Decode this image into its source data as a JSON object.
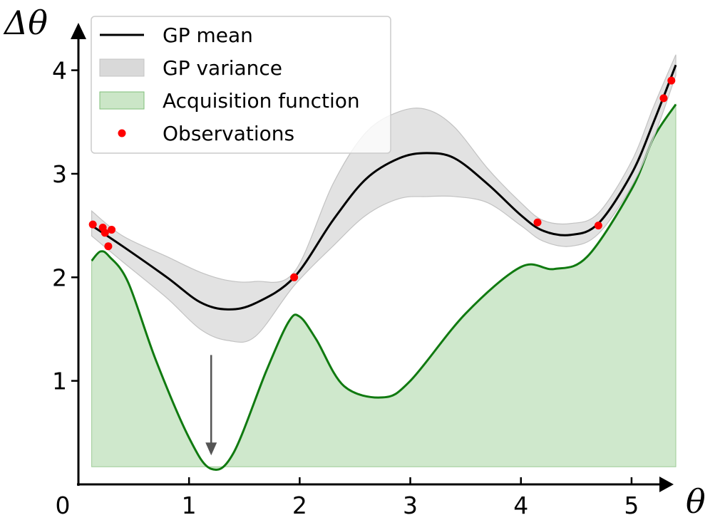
{
  "chart_data": {
    "type": "line",
    "xlabel": "θ",
    "ylabel": "Δθ",
    "xlim": [
      0,
      5.4
    ],
    "ylim": [
      0,
      4.3
    ],
    "x_ticks": [
      0,
      1,
      2,
      3,
      4,
      5
    ],
    "y_ticks": [
      1,
      2,
      3,
      4
    ],
    "x_tick_labels": [
      "0",
      "1",
      "2",
      "3",
      "4",
      "5"
    ],
    "y_tick_labels": [
      "1",
      "2",
      "3",
      "4"
    ],
    "legend_position": "top-left",
    "legend": [
      {
        "label": "GP mean",
        "kind": "line",
        "color": "#000000"
      },
      {
        "label": "GP variance",
        "kind": "band",
        "color": "#d9d9d9"
      },
      {
        "label": "Acquisition function",
        "kind": "area",
        "color": "#a8d5a2"
      },
      {
        "label": "Observations",
        "kind": "marker",
        "color": "#ff0000"
      }
    ],
    "series": [
      {
        "name": "GP mean",
        "x": [
          0.12,
          0.4,
          0.8,
          1.1,
          1.35,
          1.6,
          1.95,
          2.3,
          2.6,
          2.9,
          3.15,
          3.4,
          3.7,
          4.0,
          4.2,
          4.45,
          4.7,
          5.0,
          5.2,
          5.4
        ],
        "y": [
          2.5,
          2.3,
          2.0,
          1.76,
          1.69,
          1.75,
          2.0,
          2.55,
          2.95,
          3.15,
          3.2,
          3.15,
          2.9,
          2.6,
          2.45,
          2.41,
          2.52,
          3.0,
          3.5,
          4.05
        ]
      },
      {
        "name": "GP variance",
        "x": [
          0.12,
          0.4,
          0.8,
          1.1,
          1.35,
          1.6,
          1.95,
          2.3,
          2.6,
          2.9,
          3.15,
          3.4,
          3.7,
          4.0,
          4.2,
          4.45,
          4.7,
          5.0,
          5.2,
          5.4
        ],
        "upper": [
          2.64,
          2.4,
          2.2,
          2.05,
          1.97,
          1.96,
          2.05,
          2.9,
          3.4,
          3.6,
          3.62,
          3.45,
          3.05,
          2.72,
          2.55,
          2.52,
          2.62,
          3.12,
          3.65,
          4.15
        ],
        "lower": [
          2.4,
          2.15,
          1.8,
          1.5,
          1.39,
          1.43,
          1.92,
          2.3,
          2.6,
          2.76,
          2.78,
          2.78,
          2.72,
          2.5,
          2.35,
          2.3,
          2.42,
          2.88,
          3.35,
          3.95
        ]
      },
      {
        "name": "Acquisition function",
        "baseline": 0.17,
        "x": [
          0.12,
          0.2,
          0.28,
          0.45,
          0.7,
          1.0,
          1.2,
          1.4,
          1.7,
          1.9,
          2.0,
          2.15,
          2.4,
          2.75,
          3.0,
          3.5,
          4.0,
          4.3,
          4.6,
          5.0,
          5.2,
          5.4
        ],
        "y": [
          2.16,
          2.25,
          2.2,
          1.95,
          1.2,
          0.45,
          0.15,
          0.3,
          1.1,
          1.57,
          1.62,
          1.4,
          0.95,
          0.84,
          1.0,
          1.65,
          2.1,
          2.08,
          2.2,
          2.85,
          3.35,
          3.67
        ]
      },
      {
        "name": "Observations",
        "x": [
          0.13,
          0.22,
          0.24,
          0.27,
          0.3,
          1.95,
          4.15,
          4.7,
          5.29,
          5.36
        ],
        "y": [
          2.51,
          2.48,
          2.43,
          2.3,
          2.46,
          2.0,
          2.53,
          2.5,
          3.73,
          3.9
        ]
      }
    ],
    "annotation": {
      "type": "arrow",
      "x": 1.2,
      "y_from": 1.25,
      "y_to": 0.28,
      "color": "#555555"
    }
  }
}
